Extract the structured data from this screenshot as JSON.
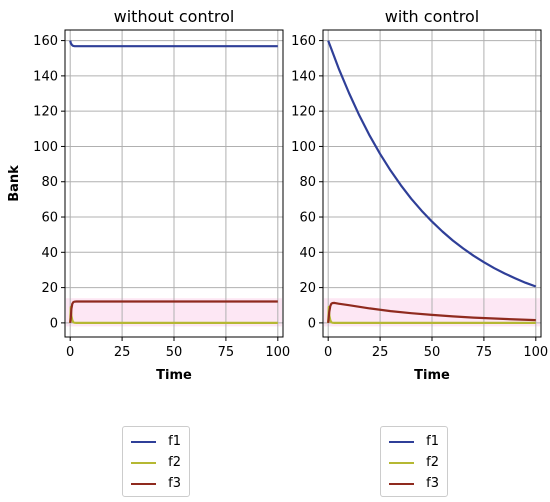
{
  "chart_data": [
    {
      "type": "line",
      "title": "without control",
      "xlabel": "Time",
      "ylabel": "Bank",
      "xlim": [
        -2.5,
        102.5
      ],
      "ylim": [
        -8,
        166
      ],
      "xticks": [
        0,
        25,
        50,
        75,
        100
      ],
      "yticks": [
        0,
        20,
        40,
        60,
        80,
        100,
        120,
        140,
        160
      ],
      "grid": true,
      "series": [
        {
          "name": "f1",
          "color": "#2f3f98",
          "x": [
            0,
            0.3,
            0.7,
            1,
            1.5,
            2,
            3,
            5,
            10,
            25,
            50,
            75,
            100
          ],
          "y": [
            160,
            158.6,
            157.8,
            157.3,
            157,
            156.9,
            156.8,
            156.8,
            156.8,
            156.8,
            156.8,
            156.8,
            156.8
          ]
        },
        {
          "name": "f2",
          "color": "#b5b832",
          "x": [
            0,
            0.3,
            0.6,
            1,
            1.5,
            2,
            3,
            5,
            25,
            50,
            75,
            100
          ],
          "y": [
            0,
            9,
            4,
            1.5,
            0.4,
            0.1,
            0,
            0,
            0,
            0,
            0,
            0
          ]
        },
        {
          "name": "f3",
          "color": "#8f2a1e",
          "x": [
            0,
            0.3,
            0.6,
            1,
            1.5,
            2,
            3,
            5,
            25,
            50,
            75,
            100
          ],
          "y": [
            0,
            3,
            8,
            10.8,
            11.7,
            12,
            12.1,
            12.1,
            12.1,
            12.1,
            12.1,
            12.1
          ]
        }
      ]
    },
    {
      "type": "line",
      "title": "with control",
      "xlabel": "Time",
      "ylabel": "",
      "xlim": [
        -2.5,
        102.5
      ],
      "ylim": [
        -8,
        166
      ],
      "xticks": [
        0,
        25,
        50,
        75,
        100
      ],
      "yticks": [
        0,
        20,
        40,
        60,
        80,
        100,
        120,
        140,
        160
      ],
      "grid": true,
      "series": [
        {
          "name": "f1",
          "color": "#2f3f98",
          "x": [
            0,
            5,
            10,
            15,
            20,
            25,
            30,
            35,
            40,
            45,
            50,
            55,
            60,
            65,
            70,
            75,
            80,
            85,
            90,
            95,
            100
          ],
          "y": [
            160,
            144.3,
            130.3,
            117.6,
            106.1,
            95.8,
            86.4,
            78,
            70.4,
            63.6,
            57.4,
            51.8,
            46.7,
            42.2,
            38.1,
            34.4,
            31,
            28,
            25.3,
            22.8,
            20.6
          ]
        },
        {
          "name": "f2",
          "color": "#b5b832",
          "x": [
            0,
            0.3,
            0.6,
            1,
            1.5,
            2,
            3,
            5,
            25,
            50,
            75,
            100
          ],
          "y": [
            0,
            9,
            4,
            1.5,
            0.4,
            0.1,
            0,
            0,
            0,
            0,
            0,
            0
          ]
        },
        {
          "name": "f3",
          "color": "#8f2a1e",
          "x": [
            0,
            0.5,
            1,
            1.5,
            2,
            3,
            5,
            10,
            20,
            30,
            40,
            50,
            60,
            70,
            80,
            90,
            100
          ],
          "y": [
            0,
            6,
            9.5,
            10.8,
            11.2,
            11.3,
            10.9,
            10,
            8.2,
            6.7,
            5.5,
            4.5,
            3.7,
            3,
            2.5,
            2,
            1.6
          ]
        }
      ]
    }
  ],
  "legends": [
    {
      "items": [
        {
          "label": "f1",
          "color": "#2f3f98"
        },
        {
          "label": "f2",
          "color": "#b5b832"
        },
        {
          "label": "f3",
          "color": "#8f2a1e"
        }
      ]
    },
    {
      "items": [
        {
          "label": "f1",
          "color": "#2f3f98"
        },
        {
          "label": "f2",
          "color": "#b5b832"
        },
        {
          "label": "f3",
          "color": "#8f2a1e"
        }
      ]
    }
  ]
}
